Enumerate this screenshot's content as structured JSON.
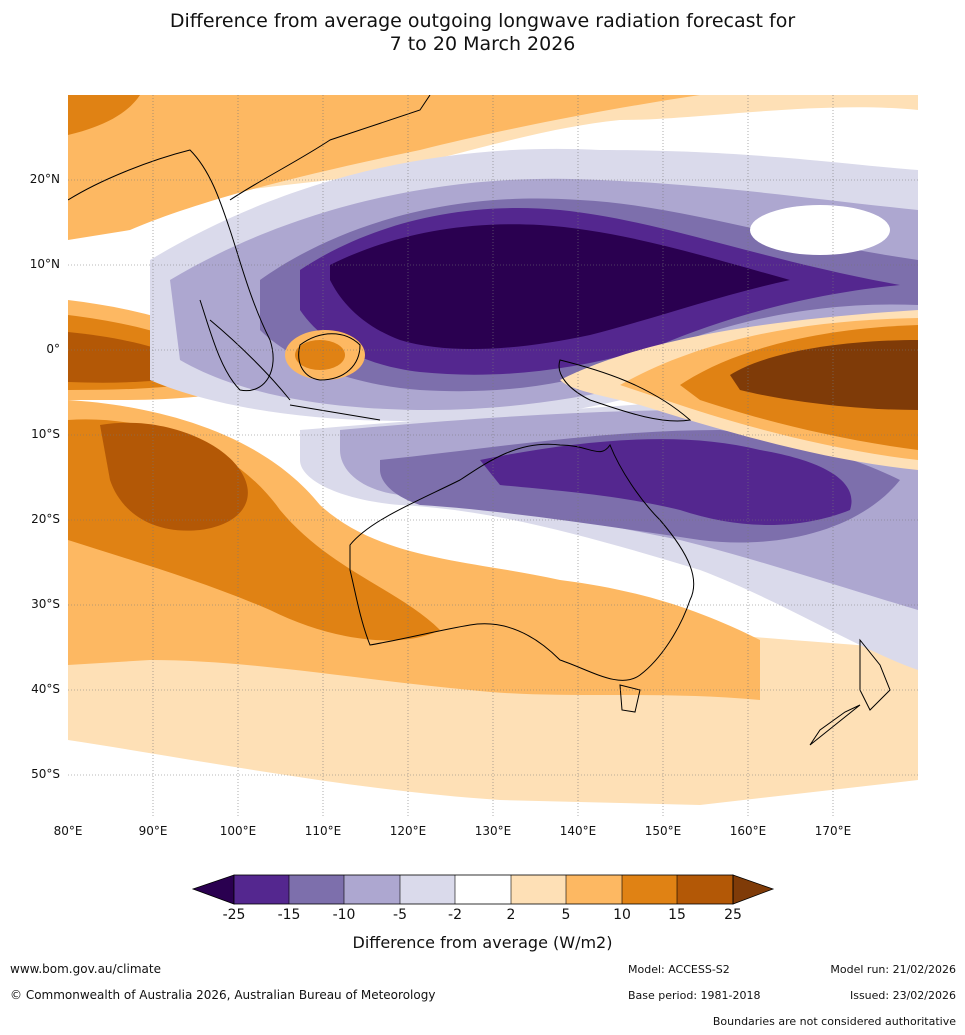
{
  "title": {
    "line1": "Difference from average outgoing longwave radiation forecast for",
    "line2": "7 to 20 March 2026"
  },
  "map": {
    "lat_labels": [
      "20°N",
      "10°N",
      "0°",
      "10°S",
      "20°S",
      "30°S",
      "40°S",
      "50°S"
    ],
    "lon_labels": [
      "80°E",
      "90°E",
      "100°E",
      "110°E",
      "120°E",
      "130°E",
      "140°E",
      "150°E",
      "160°E",
      "170°E"
    ],
    "extent": {
      "lon": [
        80,
        180
      ],
      "lat": [
        -55,
        30
      ]
    }
  },
  "colorbar": {
    "ticks": [
      "-25",
      "-15",
      "-10",
      "-5",
      "-2",
      "2",
      "5",
      "10",
      "15",
      "25"
    ],
    "colors": [
      "#2a0050",
      "#54278f",
      "#7d6fac",
      "#ada7d0",
      "#dadaeb",
      "#ffffff",
      "#fee0b6",
      "#fdb862",
      "#e08214",
      "#b35806",
      "#7f3b08"
    ],
    "title": "Difference from average (W/m2)"
  },
  "footer": {
    "website": "www.bom.gov.au/climate",
    "copyright": "© Commonwealth of Australia 2026, Australian Bureau of Meteorology",
    "model": "Model: ACCESS-S2",
    "base_period": "Base period: 1981-2018",
    "model_run": "Model run: 21/02/2026",
    "issued": "Issued: 23/02/2026",
    "disclaimer": "Boundaries are not considered authoritative"
  }
}
